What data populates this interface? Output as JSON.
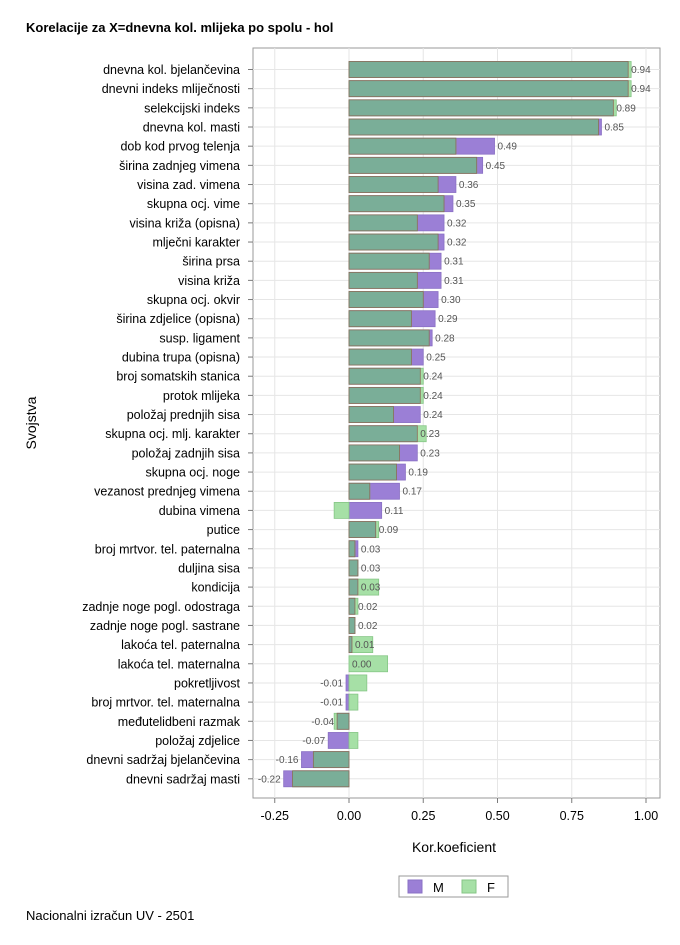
{
  "title": "Korelacije za X=dnevna kol. mlijeka po spolu - hol",
  "footer": "Nacionalni izračun UV - 2501",
  "chart_data": {
    "type": "bar",
    "orientation": "horizontal",
    "title": "Korelacije za X=dnevna kol. mlijeka po spolu - hol",
    "xlabel": "Kor.koeficient",
    "ylabel": "Svojstva",
    "xlim": [
      -0.3,
      1.0
    ],
    "xticks": [
      -0.25,
      0.0,
      0.25,
      0.5,
      0.75,
      1.0
    ],
    "xtick_labels": [
      "-0.25",
      "0.00",
      "0.25",
      "0.50",
      "0.75",
      "1.00"
    ],
    "grid": true,
    "legend_position": "bottom",
    "colors": {
      "M": "#9b7fd6",
      "F": "#a6e0a6",
      "overlap": "#7aae98",
      "overlap_border": "#8a6a5a"
    },
    "categories": [
      "dnevna kol. bjelančevina",
      "dnevni indeks mliječnosti",
      "selekcijski indeks",
      "dnevna kol. masti",
      "dob kod prvog telenja",
      "širina zadnjeg vimena",
      "visina zad. vimena",
      "skupna ocj. vime",
      "visina križa (opisna)",
      "mlječni karakter",
      "širina prsa",
      "visina križa",
      "skupna ocj. okvir",
      "širina zdjelice (opisna)",
      "susp. ligament",
      "dubina trupa (opisna)",
      "broj somatskih stanica",
      "protok mlijeka",
      "položaj prednjih sisa",
      "skupna ocj. mlj. karakter",
      "položaj zadnjih sisa",
      "skupna ocj. noge",
      "vezanost prednjeg vimena",
      "dubina vimena",
      "putice",
      "broj mrtvor. tel. paternalna",
      "duljina sisa",
      "kondicija",
      "zadnje noge pogl. odostraga",
      "zadnje noge pogl. sastrane",
      "lakoća tel. paternalna",
      "lakoća tel. maternalna",
      "pokretljivost",
      "broj mrtvor. tel. maternalna",
      "međutelidbeni razmak",
      "položaj zdjelice",
      "dnevni sadržaj bjelančevina",
      "dnevni sadržaj masti"
    ],
    "series": [
      {
        "name": "M",
        "values": [
          0.94,
          0.94,
          0.89,
          0.85,
          0.49,
          0.45,
          0.36,
          0.35,
          0.32,
          0.32,
          0.31,
          0.31,
          0.3,
          0.29,
          0.28,
          0.25,
          0.24,
          0.24,
          0.24,
          0.23,
          0.23,
          0.19,
          0.17,
          0.11,
          0.09,
          0.03,
          0.03,
          0.03,
          0.02,
          0.02,
          0.01,
          0.0,
          -0.01,
          -0.01,
          -0.04,
          -0.07,
          -0.16,
          -0.22
        ]
      },
      {
        "name": "F",
        "values": [
          0.95,
          0.95,
          0.9,
          0.84,
          0.36,
          0.43,
          0.3,
          0.32,
          0.23,
          0.3,
          0.27,
          0.23,
          0.25,
          0.21,
          0.27,
          0.21,
          0.25,
          0.25,
          0.15,
          0.26,
          0.17,
          0.16,
          0.07,
          -0.05,
          0.1,
          0.02,
          0.03,
          0.1,
          0.03,
          0.02,
          0.08,
          0.13,
          0.06,
          0.03,
          -0.05,
          0.03,
          -0.12,
          -0.19
        ]
      }
    ],
    "data_labels": [
      "0.94",
      "0.94",
      "0.89",
      "0.85",
      "0.49",
      "0.45",
      "0.36",
      "0.35",
      "0.32",
      "0.32",
      "0.31",
      "0.31",
      "0.30",
      "0.29",
      "0.28",
      "0.25",
      "0.24",
      "0.24",
      "0.24",
      "0.23",
      "0.23",
      "0.19",
      "0.17",
      "0.11",
      "0.09",
      "0.03",
      "0.03",
      "0.03",
      "0.02",
      "0.02",
      "0.01",
      "0.00",
      "-0.01",
      "-0.01",
      "-0.04",
      "-0.07",
      "-0.16",
      "-0.22"
    ],
    "legend": [
      "M",
      "F"
    ]
  }
}
